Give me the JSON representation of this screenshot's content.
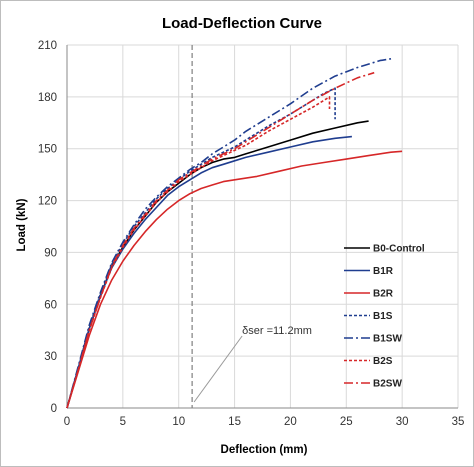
{
  "chart_data": {
    "type": "line",
    "title": "Load-Deflection Curve",
    "xlabel": "Deflection (mm)",
    "ylabel": "Load (kN)",
    "xlim": [
      0,
      35
    ],
    "ylim": [
      0,
      210
    ],
    "xticks": [
      "0",
      "5",
      "10",
      "15",
      "20",
      "25",
      "30",
      "35"
    ],
    "yticks": [
      "0",
      "30",
      "60",
      "90",
      "120",
      "150",
      "180",
      "210"
    ],
    "grid": "on",
    "legend_position": "lower-right",
    "annotation": {
      "label": "δser =11.2mm",
      "x": 11.2
    },
    "series": [
      {
        "name": "B0-Control",
        "color": "#000000",
        "dash": "solid",
        "points": [
          [
            0,
            0
          ],
          [
            1,
            22
          ],
          [
            2,
            46
          ],
          [
            3,
            65
          ],
          [
            4,
            82
          ],
          [
            5,
            93
          ],
          [
            6,
            103
          ],
          [
            7,
            111
          ],
          [
            8,
            119
          ],
          [
            9,
            125
          ],
          [
            10,
            130
          ],
          [
            11,
            135
          ],
          [
            12,
            139
          ],
          [
            13,
            142
          ],
          [
            14,
            144
          ],
          [
            15,
            145
          ],
          [
            16,
            147
          ],
          [
            18,
            151
          ],
          [
            20,
            155
          ],
          [
            22,
            159
          ],
          [
            24,
            162
          ],
          [
            26,
            165
          ],
          [
            27,
            166
          ]
        ]
      },
      {
        "name": "B1R",
        "color": "#1f3d8f",
        "dash": "solid",
        "points": [
          [
            0,
            0
          ],
          [
            1,
            23
          ],
          [
            2,
            46
          ],
          [
            3,
            65
          ],
          [
            4,
            81
          ],
          [
            5,
            92
          ],
          [
            6,
            101
          ],
          [
            7,
            109
          ],
          [
            8,
            116
          ],
          [
            9,
            123
          ],
          [
            10,
            128
          ],
          [
            11,
            132
          ],
          [
            12,
            136
          ],
          [
            13,
            139
          ],
          [
            14,
            141
          ],
          [
            15,
            143
          ],
          [
            16,
            145
          ],
          [
            18,
            148
          ],
          [
            20,
            151
          ],
          [
            22,
            154
          ],
          [
            24,
            156
          ],
          [
            25.5,
            157
          ]
        ]
      },
      {
        "name": "B2R",
        "color": "#d62728",
        "dash": "solid",
        "points": [
          [
            0,
            0
          ],
          [
            1,
            21
          ],
          [
            2,
            42
          ],
          [
            3,
            60
          ],
          [
            4,
            74
          ],
          [
            5,
            85
          ],
          [
            6,
            94
          ],
          [
            7,
            102
          ],
          [
            8,
            109
          ],
          [
            9,
            115
          ],
          [
            10,
            120
          ],
          [
            11,
            124
          ],
          [
            12,
            127
          ],
          [
            13,
            129
          ],
          [
            14,
            131
          ],
          [
            15,
            132
          ],
          [
            17,
            134
          ],
          [
            19,
            137
          ],
          [
            21,
            140
          ],
          [
            23,
            142
          ],
          [
            25,
            144
          ],
          [
            27,
            146
          ],
          [
            29,
            148
          ],
          [
            30,
            148.5
          ]
        ]
      },
      {
        "name": "B1S",
        "color": "#1f3d8f",
        "dash": "dotted",
        "points": [
          [
            0,
            0
          ],
          [
            1,
            23
          ],
          [
            2,
            47
          ],
          [
            3,
            66
          ],
          [
            4,
            83
          ],
          [
            5,
            95
          ],
          [
            6,
            105
          ],
          [
            7,
            113
          ],
          [
            8,
            121
          ],
          [
            9,
            127
          ],
          [
            10,
            132
          ],
          [
            11,
            137
          ],
          [
            12,
            141
          ],
          [
            13,
            145
          ],
          [
            14,
            148
          ],
          [
            15,
            151
          ],
          [
            16,
            155
          ],
          [
            18,
            163
          ],
          [
            20,
            170
          ],
          [
            22,
            178
          ],
          [
            23,
            182
          ],
          [
            24,
            185
          ],
          [
            24,
            167
          ]
        ]
      },
      {
        "name": "B1SW",
        "color": "#1f3d8f",
        "dash": "dashdot",
        "points": [
          [
            0,
            0
          ],
          [
            1,
            24
          ],
          [
            2,
            48
          ],
          [
            3,
            67
          ],
          [
            4,
            84
          ],
          [
            5,
            96
          ],
          [
            6,
            106
          ],
          [
            7,
            115
          ],
          [
            8,
            122
          ],
          [
            9,
            128
          ],
          [
            10,
            133
          ],
          [
            11,
            138
          ],
          [
            12,
            142
          ],
          [
            13,
            147
          ],
          [
            14,
            151
          ],
          [
            15,
            155
          ],
          [
            16,
            160
          ],
          [
            18,
            168
          ],
          [
            20,
            176
          ],
          [
            22,
            185
          ],
          [
            24,
            192
          ],
          [
            26,
            197
          ],
          [
            28,
            201
          ],
          [
            29,
            202
          ]
        ]
      },
      {
        "name": "B2S",
        "color": "#d62728",
        "dash": "dotted",
        "points": [
          [
            0,
            0
          ],
          [
            1,
            22
          ],
          [
            2,
            45
          ],
          [
            3,
            64
          ],
          [
            4,
            81
          ],
          [
            5,
            93
          ],
          [
            6,
            103
          ],
          [
            7,
            111
          ],
          [
            8,
            119
          ],
          [
            9,
            125
          ],
          [
            10,
            131
          ],
          [
            11,
            135
          ],
          [
            12,
            139
          ],
          [
            13,
            143
          ],
          [
            14,
            146
          ],
          [
            15,
            149
          ],
          [
            16,
            152
          ],
          [
            18,
            160
          ],
          [
            20,
            167
          ],
          [
            22,
            174
          ],
          [
            23.5,
            180
          ],
          [
            23.5,
            173
          ]
        ]
      },
      {
        "name": "B2SW",
        "color": "#d62728",
        "dash": "dashdot",
        "points": [
          [
            0,
            0
          ],
          [
            1,
            22
          ],
          [
            2,
            45
          ],
          [
            3,
            64
          ],
          [
            4,
            82
          ],
          [
            5,
            94
          ],
          [
            6,
            104
          ],
          [
            7,
            112
          ],
          [
            8,
            120
          ],
          [
            9,
            126
          ],
          [
            10,
            132
          ],
          [
            11,
            136
          ],
          [
            12,
            140
          ],
          [
            13,
            144
          ],
          [
            14,
            147
          ],
          [
            15,
            150
          ],
          [
            16,
            154
          ],
          [
            18,
            162
          ],
          [
            20,
            170
          ],
          [
            22,
            178
          ],
          [
            24,
            185
          ],
          [
            26,
            191
          ],
          [
            27.5,
            194
          ]
        ]
      }
    ]
  }
}
